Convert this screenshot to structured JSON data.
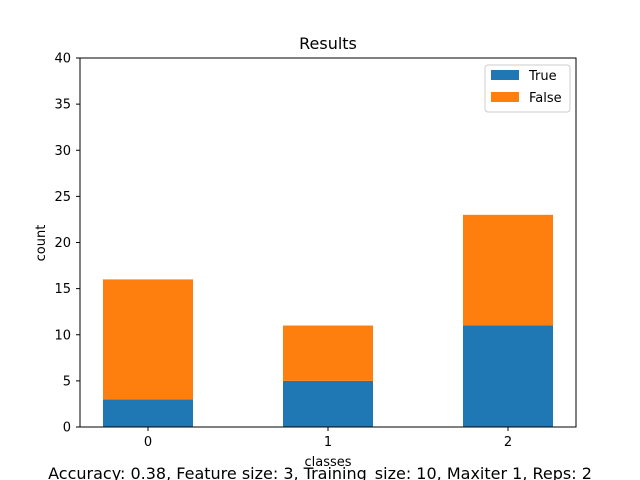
{
  "chart_data": {
    "type": "bar",
    "stacked": true,
    "title": "Results",
    "xlabel": "classes",
    "ylabel": "count",
    "categories": [
      "0",
      "1",
      "2"
    ],
    "series": [
      {
        "name": "True",
        "values": [
          3,
          5,
          11
        ],
        "color": "#1f77b4"
      },
      {
        "name": "False",
        "values": [
          13,
          6,
          12
        ],
        "color": "#ff7f0e"
      }
    ],
    "ylim": [
      0,
      40
    ],
    "yticks": [
      "0",
      "5",
      "10",
      "15",
      "20",
      "25",
      "30",
      "35",
      "40"
    ],
    "grid": false,
    "legend_position": "top-right"
  },
  "footer": "Accuracy: 0.38, Feature size: 3, Training_size: 10, Maxiter 1, Reps: 2"
}
